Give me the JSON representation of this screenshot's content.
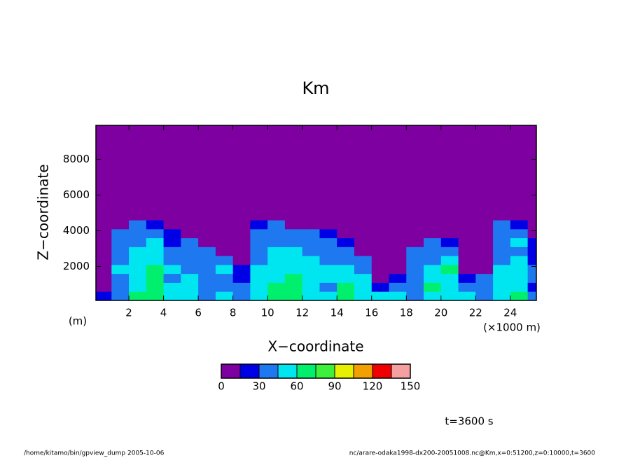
{
  "chart_data": {
    "type": "contour",
    "title": "Km",
    "x_label": "X−coordinate",
    "y_label": "Z−coordinate",
    "y_unit": "(m)",
    "x_unit": "(×1000 m)",
    "time_label": "t=3600 s",
    "footer_left": "/home/kitamo/bin/gpview_dump  2005-10-06",
    "footer_right": "nc/arare-odaka1998-dx200-20051008.nc@Km,x=0:51200,z=0:10000,t=3600",
    "xlim": [
      0.1,
      25.5
    ],
    "ylim": [
      100,
      9900
    ],
    "xticks": [
      2,
      4,
      6,
      8,
      10,
      12,
      14,
      16,
      18,
      20,
      22,
      24
    ],
    "yticks": [
      2000,
      4000,
      6000,
      8000
    ],
    "levels": [
      0,
      15,
      30,
      45,
      60,
      75,
      90,
      105,
      120,
      135,
      150
    ],
    "colors": [
      "#7e00a0",
      "#0000e6",
      "#1e78f0",
      "#00e6f0",
      "#00f06e",
      "#3cf03c",
      "#e6f000",
      "#f0a000",
      "#f00000",
      "#f5a0a0"
    ],
    "colorbar_ticks": [
      0,
      30,
      60,
      90,
      120,
      150
    ],
    "field": {
      "x_edges": [
        0.1,
        1,
        2,
        3,
        4,
        5,
        6,
        7,
        8,
        9,
        10,
        11,
        12,
        13,
        14,
        15,
        16,
        17,
        18,
        19,
        20,
        21,
        22,
        23,
        24,
        25,
        25.5
      ],
      "z_edges": [
        100,
        600,
        1100,
        1600,
        2100,
        2600,
        3100,
        3600,
        4100,
        4600,
        5100,
        9900
      ],
      "values": [
        [
          20,
          40,
          60,
          70,
          50,
          45,
          40,
          50,
          35,
          55,
          60,
          65,
          55,
          50,
          60,
          55,
          50,
          45,
          40,
          50,
          55,
          45,
          35,
          50,
          60,
          30
        ],
        [
          10,
          35,
          55,
          70,
          45,
          50,
          35,
          40,
          30,
          50,
          65,
          60,
          50,
          40,
          65,
          50,
          20,
          40,
          35,
          60,
          50,
          30,
          35,
          45,
          55,
          25
        ],
        [
          5,
          40,
          50,
          65,
          40,
          45,
          30,
          40,
          20,
          45,
          55,
          60,
          45,
          50,
          55,
          45,
          10,
          20,
          40,
          50,
          55,
          20,
          40,
          50,
          45,
          30
        ],
        [
          5,
          45,
          45,
          60,
          50,
          40,
          35,
          45,
          20,
          45,
          50,
          55,
          50,
          45,
          50,
          40,
          5,
          5,
          40,
          45,
          60,
          5,
          10,
          45,
          50,
          30
        ],
        [
          5,
          40,
          45,
          55,
          40,
          35,
          40,
          30,
          5,
          40,
          45,
          50,
          45,
          40,
          40,
          35,
          0,
          0,
          35,
          40,
          45,
          0,
          0,
          40,
          45,
          25
        ],
        [
          0,
          40,
          50,
          45,
          35,
          40,
          30,
          5,
          0,
          35,
          45,
          45,
          40,
          35,
          35,
          5,
          0,
          0,
          30,
          40,
          35,
          0,
          0,
          40,
          40,
          20
        ],
        [
          0,
          35,
          40,
          45,
          20,
          35,
          5,
          0,
          0,
          40,
          35,
          40,
          35,
          30,
          20,
          0,
          0,
          0,
          5,
          30,
          15,
          0,
          0,
          35,
          45,
          15
        ],
        [
          0,
          30,
          35,
          40,
          15,
          10,
          0,
          0,
          0,
          35,
          35,
          30,
          30,
          15,
          0,
          0,
          0,
          0,
          0,
          0,
          0,
          0,
          0,
          35,
          40,
          5
        ],
        [
          0,
          10,
          30,
          25,
          0,
          0,
          0,
          0,
          0,
          20,
          30,
          10,
          0,
          0,
          0,
          0,
          0,
          0,
          0,
          0,
          0,
          0,
          0,
          30,
          25,
          0
        ],
        [
          0,
          0,
          0,
          0,
          0,
          0,
          0,
          0,
          0,
          0,
          0,
          0,
          0,
          0,
          0,
          0,
          0,
          0,
          0,
          0,
          0,
          0,
          0,
          0,
          0,
          0
        ],
        [
          0,
          0,
          0,
          0,
          0,
          0,
          0,
          0,
          0,
          0,
          0,
          0,
          0,
          0,
          0,
          0,
          0,
          0,
          0,
          0,
          0,
          0,
          0,
          0,
          0,
          0
        ]
      ]
    }
  }
}
